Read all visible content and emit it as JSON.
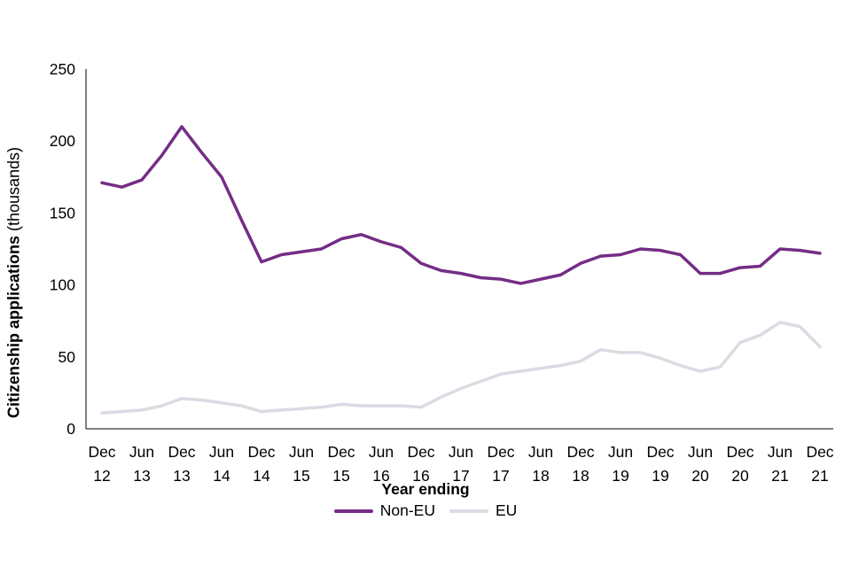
{
  "chart_data": {
    "type": "line",
    "title": "",
    "ylabel_bold": "Citizenship applications",
    "ylabel_unit": " (thousands)",
    "xlabel": "Year ending",
    "ylim": [
      0,
      250
    ],
    "yticks": [
      0,
      50,
      100,
      150,
      200,
      250
    ],
    "grid": false,
    "legend_position": "bottom",
    "x_tick_labels": [
      {
        "month": "Dec",
        "year": "12"
      },
      {
        "month": "Jun",
        "year": "13"
      },
      {
        "month": "Dec",
        "year": "13"
      },
      {
        "month": "Jun",
        "year": "14"
      },
      {
        "month": "Dec",
        "year": "14"
      },
      {
        "month": "Jun",
        "year": "15"
      },
      {
        "month": "Dec",
        "year": "15"
      },
      {
        "month": "Jun",
        "year": "16"
      },
      {
        "month": "Dec",
        "year": "16"
      },
      {
        "month": "Jun",
        "year": "17"
      },
      {
        "month": "Dec",
        "year": "17"
      },
      {
        "month": "Jun",
        "year": "18"
      },
      {
        "month": "Dec",
        "year": "18"
      },
      {
        "month": "Jun",
        "year": "19"
      },
      {
        "month": "Dec",
        "year": "19"
      },
      {
        "month": "Jun",
        "year": "20"
      },
      {
        "month": "Dec",
        "year": "20"
      },
      {
        "month": "Jun",
        "year": "21"
      },
      {
        "month": "Dec",
        "year": "21"
      }
    ],
    "x": [
      "Dec 12",
      "Mar 13",
      "Jun 13",
      "Sep 13",
      "Dec 13",
      "Mar 14",
      "Jun 14",
      "Sep 14",
      "Dec 14",
      "Mar 15",
      "Jun 15",
      "Sep 15",
      "Dec 15",
      "Mar 16",
      "Jun 16",
      "Sep 16",
      "Dec 16",
      "Mar 17",
      "Jun 17",
      "Sep 17",
      "Dec 17",
      "Mar 18",
      "Jun 18",
      "Sep 18",
      "Dec 18",
      "Mar 19",
      "Jun 19",
      "Sep 19",
      "Dec 19",
      "Mar 20",
      "Jun 20",
      "Sep 20",
      "Dec 20",
      "Mar 21",
      "Jun 21",
      "Sep 21",
      "Dec 21"
    ],
    "series": [
      {
        "name": "Non-EU",
        "color": "#742d85",
        "values": [
          171,
          168,
          173,
          190,
          210,
          192,
          175,
          145,
          116,
          121,
          123,
          125,
          132,
          135,
          130,
          126,
          115,
          110,
          108,
          105,
          104,
          101,
          104,
          107,
          115,
          120,
          121,
          125,
          124,
          121,
          108,
          108,
          112,
          113,
          125,
          124,
          122
        ]
      },
      {
        "name": "EU",
        "color": "#dcdbe4",
        "values": [
          11,
          12,
          13,
          16,
          21,
          20,
          18,
          16,
          12,
          13,
          14,
          15,
          17,
          16,
          16,
          16,
          15,
          22,
          28,
          33,
          38,
          40,
          42,
          44,
          47,
          55,
          53,
          53,
          49,
          44,
          40,
          43,
          60,
          65,
          74,
          71,
          57
        ]
      }
    ]
  }
}
